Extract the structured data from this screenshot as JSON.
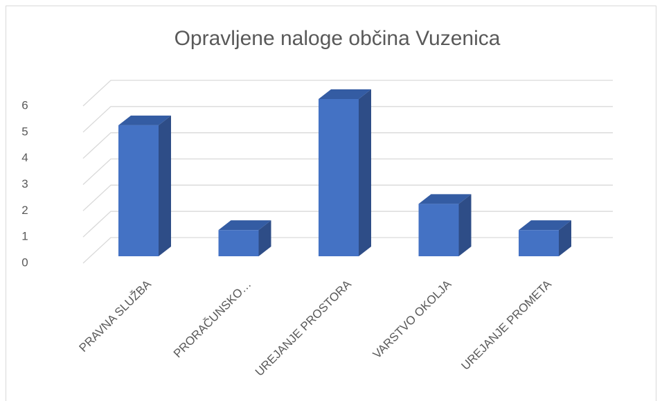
{
  "chart_data": {
    "type": "bar3d",
    "title": "Opravljene naloge občina Vuzenica",
    "categories": [
      "PRAVNA SLUŽBA",
      "PRORAČUNSKO…",
      "UREJANJE PROSTORA",
      "VARSTVO OKOLJA",
      "UREJANJE PROMETA"
    ],
    "values": [
      5,
      1,
      6,
      2,
      1
    ],
    "color": "#4472c4",
    "ylim": [
      0,
      6
    ],
    "yticks": [
      0,
      1,
      2,
      3,
      4,
      5,
      6
    ],
    "grid": true
  }
}
